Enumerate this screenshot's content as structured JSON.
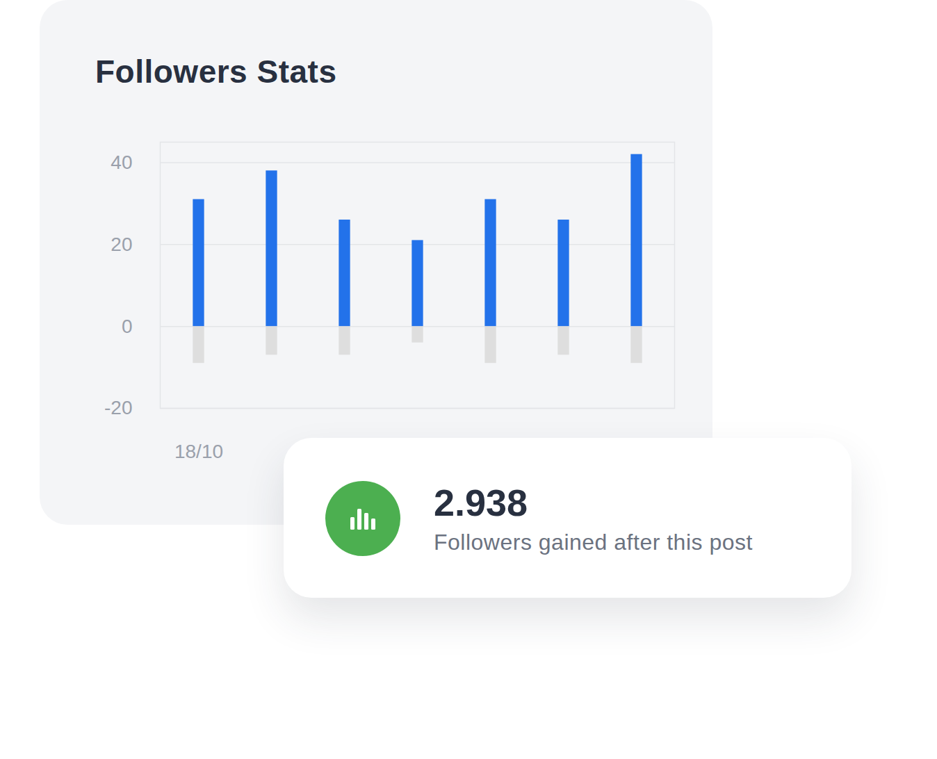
{
  "chart_data": {
    "type": "bar",
    "title": "Followers Stats",
    "categories": [
      "18/10",
      null,
      null,
      null,
      null,
      null,
      null
    ],
    "series": [
      {
        "color": "#2372ea",
        "values": [
          31,
          38,
          26,
          21,
          31,
          26,
          42
        ]
      },
      {
        "color": "#dedede",
        "values": [
          -9,
          -7,
          -7,
          -4,
          -9,
          -7,
          -9
        ]
      }
    ],
    "ylim": [
      -20,
      45
    ],
    "yticks": [
      -20,
      0,
      20,
      40
    ],
    "grid": true,
    "annotations": [
      "2.938",
      "Followers gained after this post"
    ]
  }
}
